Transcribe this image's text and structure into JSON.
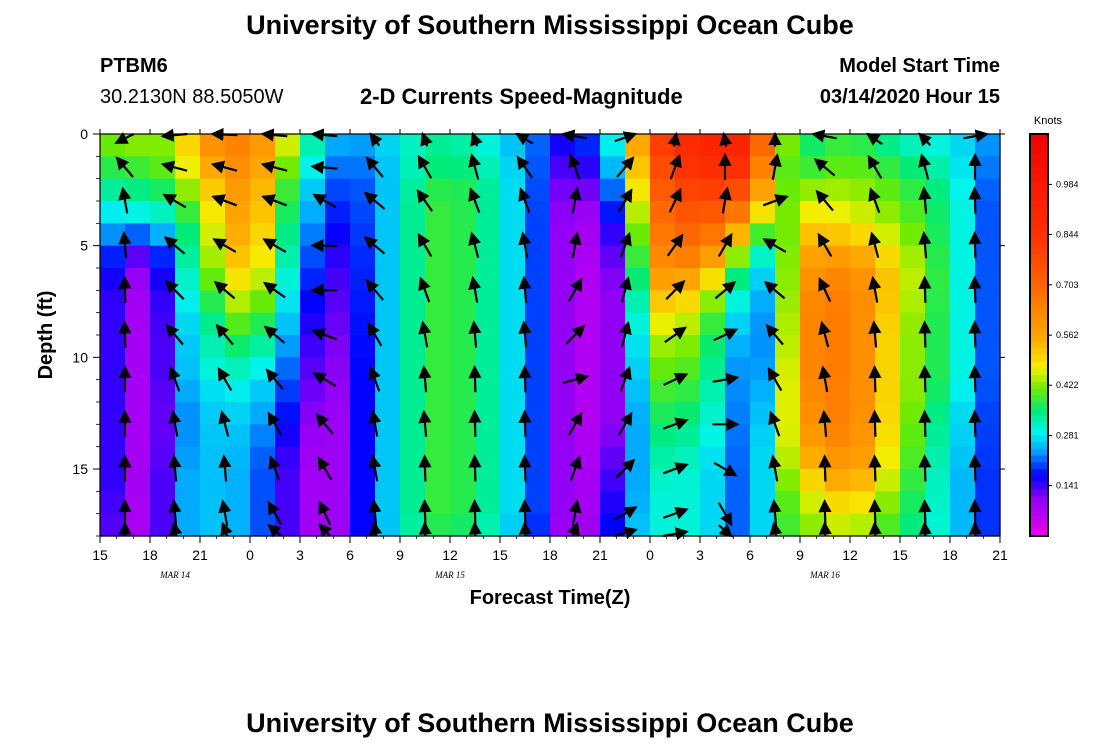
{
  "header": {
    "title_top": "University of Southern Mississippi Ocean Cube",
    "title_bottom": "University of Southern Mississippi Ocean Cube",
    "station_id": "PTBM6",
    "coordinates": "30.2130N 88.5050W",
    "model_start_label": "Model Start Time",
    "model_start_value": "03/14/2020 Hour 15"
  },
  "chart_data": {
    "type": "heatmap",
    "title": "2-D Currents Speed-Magnitude",
    "xlabel": "Forecast Time(Z)",
    "ylabel": "Depth (ft)",
    "x_ticks": [
      "15",
      "18",
      "21",
      "0",
      "3",
      "6",
      "9",
      "12",
      "15",
      "18",
      "21",
      "0",
      "3",
      "6",
      "9",
      "12",
      "15",
      "18",
      "21"
    ],
    "x_range_hours": [
      0,
      54
    ],
    "y_ticks": [
      "0",
      "5",
      "10",
      "15"
    ],
    "y_range": [
      0,
      18
    ],
    "date_labels": [
      {
        "text": "MAR 14",
        "hour": 4.5
      },
      {
        "text": "MAR 15",
        "hour": 21
      },
      {
        "text": "MAR 16",
        "hour": 43.5
      }
    ],
    "colorbar": {
      "units": "Knots",
      "labels": [
        "0.984",
        "0.844",
        "0.703",
        "0.562",
        "0.422",
        "0.281",
        "0.141"
      ],
      "range": [
        0,
        1.125
      ]
    },
    "time_hours": [
      0,
      1.5,
      3,
      4.5,
      6,
      7.5,
      9,
      10.5,
      12,
      13.5,
      15,
      16.5,
      18,
      19.5,
      21,
      22.5,
      24,
      25.5,
      27,
      28.5,
      30,
      31.5,
      33,
      34.5,
      36,
      37.5,
      39,
      40.5,
      42,
      43.5,
      45,
      46.5,
      48,
      49.5,
      51,
      52.5,
      54
    ],
    "depths_ft": [
      0,
      1,
      2,
      3,
      4,
      5,
      6,
      7,
      8,
      9,
      10,
      11,
      12,
      13,
      14,
      15,
      16,
      17,
      18
    ],
    "speed_keyframes": [
      {
        "hour": 0,
        "values": [
          0.42,
          0.38,
          0.35,
          0.3,
          0.26,
          0.22,
          0.2,
          0.18,
          0.18,
          0.18,
          0.18,
          0.18,
          0.18,
          0.18,
          0.18,
          0.18,
          0.18,
          0.16,
          0.16
        ]
      },
      {
        "hour": 3,
        "values": [
          0.45,
          0.4,
          0.38,
          0.32,
          0.28,
          0.12,
          0.08,
          0.06,
          0.05,
          0.05,
          0.05,
          0.05,
          0.05,
          0.05,
          0.05,
          0.05,
          0.05,
          0.05,
          0.05
        ]
      },
      {
        "hour": 4.5,
        "values": [
          0.4,
          0.42,
          0.4,
          0.35,
          0.3,
          0.28,
          0.26,
          0.24,
          0.24,
          0.22,
          0.22,
          0.22,
          0.2,
          0.2,
          0.2,
          0.22,
          0.22,
          0.22,
          0.22
        ]
      },
      {
        "hour": 6,
        "values": [
          0.62,
          0.55,
          0.5,
          0.45,
          0.42,
          0.4,
          0.38,
          0.35,
          0.32,
          0.3,
          0.3,
          0.28,
          0.26,
          0.26,
          0.26,
          0.26,
          0.26,
          0.26,
          0.26
        ]
      },
      {
        "hour": 9,
        "values": [
          0.65,
          0.65,
          0.62,
          0.62,
          0.6,
          0.58,
          0.55,
          0.5,
          0.45,
          0.4,
          0.35,
          0.3,
          0.28,
          0.26,
          0.25,
          0.24,
          0.24,
          0.24,
          0.24
        ]
      },
      {
        "hour": 11,
        "values": [
          0.5,
          0.45,
          0.4,
          0.38,
          0.36,
          0.34,
          0.32,
          0.3,
          0.28,
          0.26,
          0.24,
          0.22,
          0.2,
          0.18,
          0.16,
          0.14,
          0.14,
          0.14,
          0.14
        ]
      },
      {
        "hour": 14,
        "values": [
          0.22,
          0.2,
          0.18,
          0.16,
          0.14,
          0.12,
          0.1,
          0.09,
          0.08,
          0.07,
          0.06,
          0.06,
          0.05,
          0.05,
          0.05,
          0.05,
          0.05,
          0.05,
          0.05
        ]
      },
      {
        "hour": 16.5,
        "values": [
          0.25,
          0.24,
          0.22,
          0.22,
          0.22,
          0.22,
          0.22,
          0.22,
          0.22,
          0.22,
          0.22,
          0.22,
          0.22,
          0.22,
          0.22,
          0.22,
          0.22,
          0.22,
          0.22
        ]
      },
      {
        "hour": 20,
        "values": [
          0.35,
          0.35,
          0.38,
          0.4,
          0.4,
          0.4,
          0.4,
          0.4,
          0.4,
          0.4,
          0.4,
          0.4,
          0.4,
          0.4,
          0.4,
          0.4,
          0.4,
          0.4,
          0.38
        ]
      },
      {
        "hour": 23,
        "values": [
          0.3,
          0.32,
          0.35,
          0.35,
          0.35,
          0.35,
          0.35,
          0.35,
          0.35,
          0.35,
          0.35,
          0.35,
          0.35,
          0.35,
          0.35,
          0.35,
          0.35,
          0.35,
          0.33
        ]
      },
      {
        "hour": 26,
        "values": [
          0.22,
          0.22,
          0.22,
          0.22,
          0.22,
          0.22,
          0.22,
          0.22,
          0.22,
          0.22,
          0.22,
          0.22,
          0.22,
          0.22,
          0.22,
          0.22,
          0.22,
          0.22,
          0.2
        ]
      },
      {
        "hour": 28.5,
        "values": [
          0.15,
          0.12,
          0.08,
          0.06,
          0.05,
          0.05,
          0.05,
          0.05,
          0.05,
          0.05,
          0.05,
          0.05,
          0.05,
          0.05,
          0.05,
          0.05,
          0.05,
          0.05,
          0.05
        ]
      },
      {
        "hour": 31.5,
        "values": [
          0.35,
          0.32,
          0.28,
          0.24,
          0.2,
          0.16,
          0.14,
          0.12,
          0.12,
          0.12,
          0.12,
          0.12,
          0.12,
          0.12,
          0.14,
          0.16,
          0.18,
          0.2,
          0.22
        ]
      },
      {
        "hour": 33,
        "values": [
          0.8,
          0.75,
          0.72,
          0.68,
          0.65,
          0.62,
          0.6,
          0.55,
          0.5,
          0.45,
          0.42,
          0.4,
          0.38,
          0.36,
          0.34,
          0.32,
          0.3,
          0.3,
          0.3
        ]
      },
      {
        "hour": 36,
        "values": [
          0.92,
          0.9,
          0.85,
          0.8,
          0.75,
          0.7,
          0.6,
          0.52,
          0.45,
          0.42,
          0.4,
          0.38,
          0.36,
          0.34,
          0.32,
          0.3,
          0.3,
          0.3,
          0.3
        ]
      },
      {
        "hour": 39,
        "values": [
          0.92,
          0.9,
          0.8,
          0.7,
          0.55,
          0.4,
          0.3,
          0.25,
          0.22,
          0.2,
          0.18,
          0.18,
          0.18,
          0.18,
          0.18,
          0.18,
          0.18,
          0.18,
          0.18
        ]
      },
      {
        "hour": 40.5,
        "values": [
          0.5,
          0.45,
          0.4,
          0.38,
          0.32,
          0.28,
          0.26,
          0.25,
          0.25,
          0.26,
          0.28,
          0.3,
          0.32,
          0.34,
          0.36,
          0.36,
          0.36,
          0.36,
          0.36
        ]
      },
      {
        "hour": 42,
        "values": [
          0.35,
          0.35,
          0.4,
          0.45,
          0.5,
          0.55,
          0.58,
          0.6,
          0.62,
          0.62,
          0.62,
          0.62,
          0.6,
          0.58,
          0.55,
          0.5,
          0.45,
          0.42,
          0.4
        ]
      },
      {
        "hour": 45,
        "values": [
          0.38,
          0.4,
          0.42,
          0.45,
          0.48,
          0.55,
          0.62,
          0.66,
          0.66,
          0.66,
          0.66,
          0.66,
          0.66,
          0.66,
          0.64,
          0.6,
          0.55,
          0.48,
          0.45
        ]
      },
      {
        "hour": 48,
        "values": [
          0.3,
          0.35,
          0.38,
          0.4,
          0.42,
          0.45,
          0.48,
          0.48,
          0.46,
          0.45,
          0.45,
          0.45,
          0.45,
          0.44,
          0.43,
          0.42,
          0.4,
          0.38,
          0.36
        ]
      },
      {
        "hour": 51,
        "values": [
          0.28,
          0.3,
          0.32,
          0.34,
          0.34,
          0.34,
          0.34,
          0.34,
          0.34,
          0.34,
          0.34,
          0.34,
          0.32,
          0.3,
          0.3,
          0.28,
          0.28,
          0.28,
          0.28
        ]
      },
      {
        "hour": 54,
        "values": [
          0.22,
          0.2,
          0.18,
          0.16,
          0.16,
          0.16,
          0.16,
          0.16,
          0.16,
          0.16,
          0.16,
          0.16,
          0.16,
          0.16,
          0.16,
          0.16,
          0.16,
          0.16,
          0.16
        ]
      }
    ],
    "vector_hours": [
      1.5,
      4.5,
      7.5,
      10.5,
      13.5,
      16.5,
      19.5,
      22.5,
      25.5,
      28.5,
      31.5,
      34.5,
      37.5,
      40.5,
      43.5,
      46.5,
      49.5,
      52.5
    ],
    "vector_depths_ft": [
      0,
      1.5,
      3,
      5,
      7,
      9,
      11,
      13,
      15,
      17,
      18
    ],
    "vector_direction_keyframes": [
      {
        "hour": 1.5,
        "angles_deg": [
          225,
          130,
          100,
          95,
          92,
          92,
          90,
          90,
          90,
          90,
          90
        ]
      },
      {
        "hour": 4.5,
        "angles_deg": [
          190,
          165,
          150,
          140,
          135,
          130,
          110,
          100,
          95,
          95,
          95
        ]
      },
      {
        "hour": 7.5,
        "angles_deg": [
          175,
          165,
          160,
          150,
          140,
          130,
          120,
          105,
          95,
          100,
          100
        ]
      },
      {
        "hour": 10.5,
        "angles_deg": [
          170,
          165,
          160,
          150,
          145,
          140,
          130,
          120,
          110,
          120,
          120
        ]
      },
      {
        "hour": 13.5,
        "angles_deg": [
          170,
          175,
          150,
          178,
          180,
          160,
          150,
          130,
          120,
          115,
          115
        ]
      },
      {
        "hour": 16.5,
        "angles_deg": [
          110,
          130,
          140,
          140,
          130,
          120,
          110,
          100,
          100,
          95,
          95
        ]
      },
      {
        "hour": 19.5,
        "angles_deg": [
          100,
          120,
          125,
          120,
          110,
          100,
          95,
          95,
          92,
          92,
          92
        ]
      },
      {
        "hour": 22.5,
        "angles_deg": [
          100,
          105,
          110,
          105,
          100,
          95,
          92,
          92,
          92,
          92,
          92
        ]
      },
      {
        "hour": 25.5,
        "angles_deg": [
          130,
          125,
          110,
          100,
          95,
          95,
          92,
          92,
          92,
          92,
          92
        ]
      },
      {
        "hour": 28.5,
        "angles_deg": [
          160,
          110,
          80,
          80,
          60,
          45,
          15,
          60,
          70,
          80,
          80
        ]
      },
      {
        "hour": 31.5,
        "angles_deg": [
          35,
          50,
          60,
          70,
          75,
          75,
          70,
          60,
          45,
          30,
          30
        ]
      },
      {
        "hour": 34.5,
        "angles_deg": [
          85,
          70,
          65,
          55,
          45,
          35,
          25,
          20,
          20,
          20,
          20
        ]
      },
      {
        "hour": 37.5,
        "angles_deg": [
          95,
          90,
          80,
          60,
          40,
          25,
          10,
          0,
          330,
          300,
          300
        ]
      },
      {
        "hour": 40.5,
        "angles_deg": [
          90,
          80,
          20,
          150,
          140,
          130,
          120,
          110,
          100,
          95,
          95
        ]
      },
      {
        "hour": 43.5,
        "angles_deg": [
          160,
          140,
          130,
          120,
          115,
          105,
          100,
          95,
          92,
          92,
          92
        ]
      },
      {
        "hour": 46.5,
        "angles_deg": [
          125,
          120,
          110,
          105,
          100,
          95,
          92,
          92,
          92,
          92,
          92
        ]
      },
      {
        "hour": 49.5,
        "angles_deg": [
          115,
          105,
          95,
          95,
          92,
          92,
          92,
          92,
          92,
          92,
          92
        ]
      },
      {
        "hour": 52.5,
        "angles_deg": [
          20,
          90,
          92,
          92,
          92,
          92,
          92,
          92,
          92,
          92,
          92
        ]
      }
    ]
  }
}
